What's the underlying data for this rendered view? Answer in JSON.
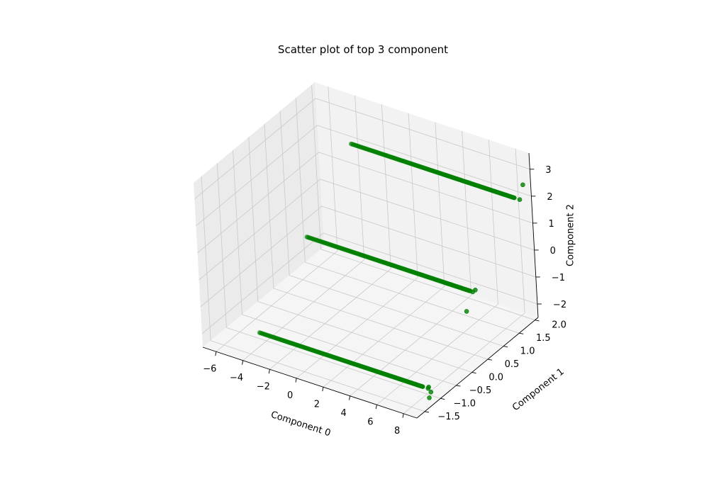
{
  "chart_data": {
    "type": "scatter",
    "projection": "3d",
    "title": "Scatter plot of top 3 component",
    "xlabel": "Component 0",
    "ylabel": "Component 1",
    "zlabel": "Component 2",
    "xlim": [
      -7,
      9
    ],
    "ylim": [
      -1.75,
      2.1
    ],
    "zlim": [
      -2.5,
      3.6
    ],
    "x_ticks": [
      -6,
      -4,
      -2,
      0,
      2,
      4,
      6,
      8
    ],
    "x_tick_labels": [
      "−6",
      "−4",
      "−2",
      "0",
      "2",
      "4",
      "6",
      "8"
    ],
    "y_ticks": [
      -1.5,
      -1.0,
      -0.5,
      0.0,
      0.5,
      1.0,
      1.5,
      2.0
    ],
    "y_tick_labels": [
      "−1.5",
      "−1.0",
      "−0.5",
      "0.0",
      "0.5",
      "1.0",
      "1.5",
      "2.0"
    ],
    "z_ticks": [
      -2,
      -1,
      0,
      1,
      2,
      3
    ],
    "z_tick_labels": [
      "−2",
      "−1",
      "0",
      "1",
      "2",
      "3"
    ],
    "grid": true,
    "legend": false,
    "marker_color": "#008000",
    "pane_colors": {
      "back": "#f2f2f2",
      "side": "#ebebeb",
      "floor": "#f5f5f5"
    },
    "grid_color": "#c8c8c8",
    "series": [
      {
        "values": [
          [
            -4.0,
            -1.2,
            -2.0
          ],
          [
            8.2,
            -1.2,
            -2.0
          ]
        ]
      },
      {
        "values": [
          [
            -4.0,
            0.4,
            0.0
          ],
          [
            8.2,
            0.4,
            0.0
          ]
        ]
      },
      {
        "values": [
          [
            -4.0,
            1.9,
            2.0
          ],
          [
            8.2,
            1.9,
            2.0
          ]
        ]
      }
    ],
    "outliers": [
      [
        8.6,
        -1.2,
        -2.0
      ],
      [
        8.8,
        -1.2,
        -2.1
      ],
      [
        8.9,
        -1.3,
        -1.8
      ],
      [
        8.9,
        -1.3,
        -2.2
      ],
      [
        8.6,
        1.9,
        2.0
      ],
      [
        8.9,
        1.9,
        2.6
      ],
      [
        8.4,
        0.4,
        0.0
      ],
      [
        8.6,
        0.4,
        0.1
      ],
      [
        8.6,
        0.1,
        -0.4
      ]
    ]
  }
}
